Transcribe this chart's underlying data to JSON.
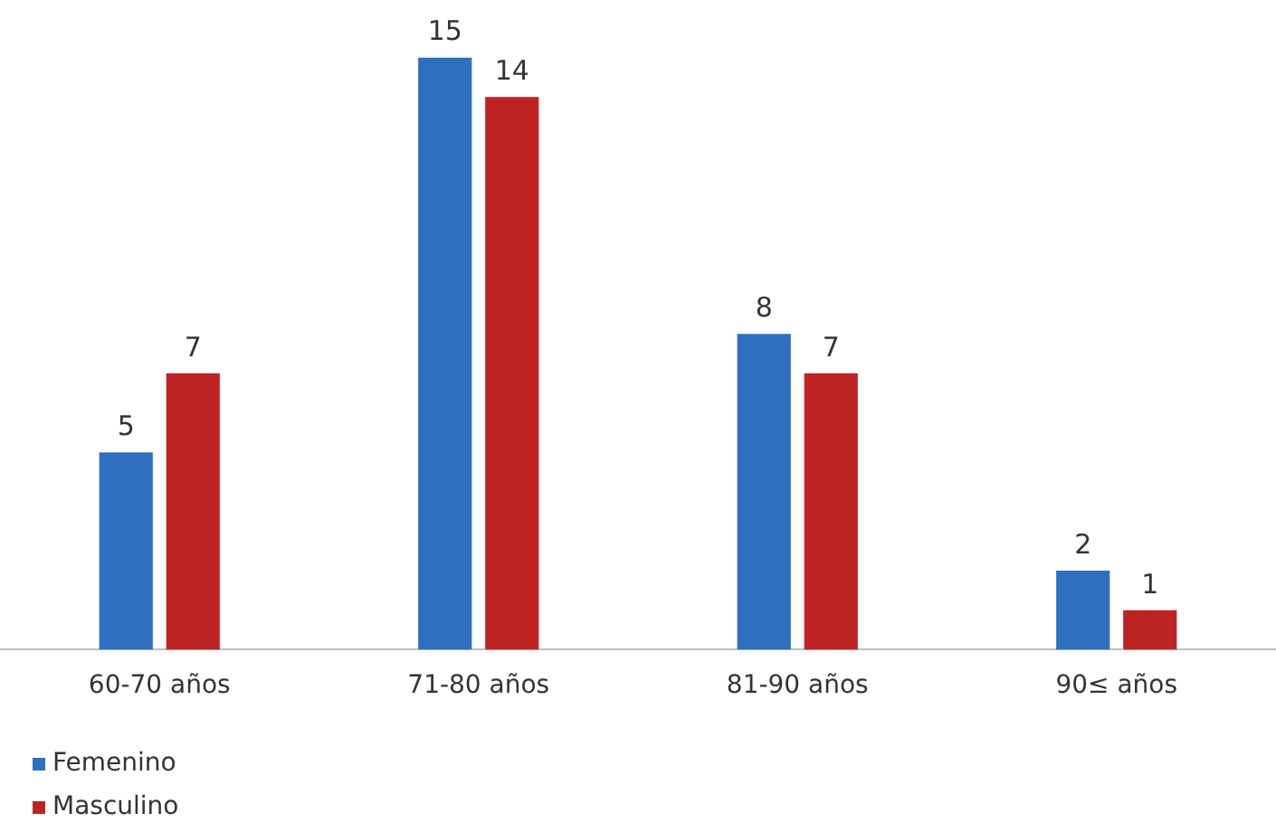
{
  "chart_data": {
    "type": "bar",
    "categories": [
      "60-70 años",
      "71-80 años",
      "81-90 años",
      "90≤ años"
    ],
    "series": [
      {
        "name": "Femenino",
        "color": "#2e6fc0",
        "values": [
          5,
          15,
          8,
          2
        ]
      },
      {
        "name": "Masculino",
        "color": "#be2323",
        "values": [
          7,
          14,
          7,
          1
        ]
      }
    ],
    "data_labels": true,
    "legend": "bottom left",
    "grid": false,
    "tick_labels": "x"
  }
}
